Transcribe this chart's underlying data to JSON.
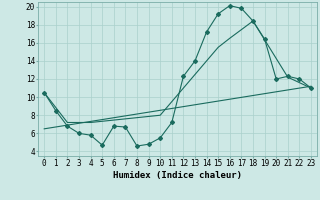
{
  "xlabel": "Humidex (Indice chaleur)",
  "xlim": [
    -0.5,
    23.5
  ],
  "ylim": [
    3.5,
    20.5
  ],
  "background_color": "#cde8e5",
  "grid_color": "#aad0cc",
  "line_color": "#1a6b5e",
  "line1_x": [
    0,
    1,
    2,
    3,
    4,
    5,
    6,
    7,
    8,
    9,
    10,
    11,
    12,
    13,
    14,
    15,
    16,
    17,
    18,
    19,
    20,
    21,
    22,
    23
  ],
  "line1_y": [
    10.5,
    8.5,
    6.8,
    6.0,
    5.8,
    4.7,
    6.8,
    6.7,
    4.6,
    4.8,
    5.5,
    7.2,
    12.3,
    14.0,
    17.2,
    19.2,
    20.1,
    19.8,
    18.4,
    16.4,
    12.0,
    12.3,
    12.0,
    11.0
  ],
  "line2_x": [
    0,
    2,
    4,
    10,
    15,
    16,
    18,
    21,
    23
  ],
  "line2_y": [
    10.5,
    7.2,
    7.2,
    8.0,
    15.5,
    16.5,
    18.4,
    12.2,
    11.0
  ],
  "line3_x": [
    0,
    23
  ],
  "line3_y": [
    6.5,
    11.2
  ],
  "xtick_values": [
    0,
    1,
    2,
    3,
    4,
    5,
    6,
    7,
    8,
    9,
    10,
    11,
    12,
    13,
    14,
    15,
    16,
    17,
    18,
    19,
    20,
    21,
    22,
    23
  ],
  "xtick_labels": [
    "0",
    "1",
    "2",
    "3",
    "4",
    "5",
    "6",
    "7",
    "8",
    "9",
    "10",
    "11",
    "12",
    "13",
    "14",
    "15",
    "16",
    "17",
    "18",
    "19",
    "20",
    "21",
    "22",
    "23"
  ],
  "ytick_values": [
    4,
    6,
    8,
    10,
    12,
    14,
    16,
    18,
    20
  ],
  "fontsize_xlabel": 6.5,
  "fontsize_ticks": 5.5
}
